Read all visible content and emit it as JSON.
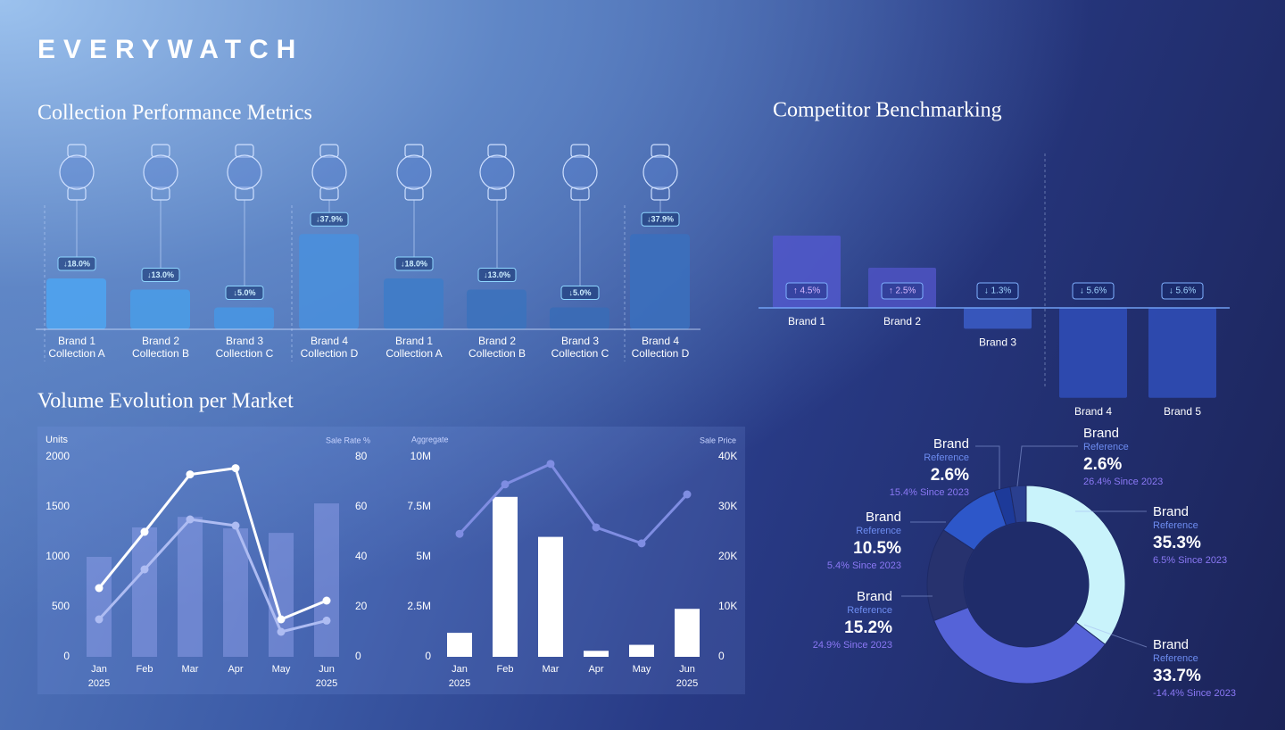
{
  "header": {
    "brand": "EVERYWATCH"
  },
  "chart_data": [
    {
      "type": "bar",
      "title": "Collection Performance Metrics",
      "categories": [
        "Brand 1",
        "Brand 2",
        "Brand 3",
        "Brand 4",
        "Brand 1",
        "Brand 2",
        "Brand 3",
        "Brand 4"
      ],
      "subcategories": [
        "Collection A",
        "Collection B",
        "Collection C",
        "Collection D",
        "Collection A",
        "Collection B",
        "Collection C",
        "Collection D"
      ],
      "values": [
        18,
        13,
        5,
        37.9,
        18,
        13,
        5,
        37.9
      ],
      "value_labels": [
        "↓18.0%",
        "↓13.0%",
        "↓5.0%",
        "↓37.9%",
        "↓18.0%",
        "↓13.0%",
        "↓5.0%",
        "↓37.9%"
      ],
      "colors": [
        "#4fa3ee",
        "#4a9be6",
        "#4895e2",
        "#4a8fdc",
        "#3f7cc8",
        "#3c72bd",
        "#3a6bb6",
        "#3b6fbc"
      ]
    },
    {
      "type": "bar",
      "title": "Competitor Benchmarking",
      "categories": [
        "Brand 1",
        "Brand 2",
        "Brand 3",
        "Brand 4",
        "Brand 5"
      ],
      "values": [
        4.5,
        2.5,
        -1.3,
        -5.6,
        -5.6
      ],
      "value_labels": [
        "↑ 4.5%",
        "↑ 2.5%",
        "↓ 1.3%",
        "↓ 5.6%",
        "↓ 5.6%"
      ],
      "colors": [
        "#5058c9",
        "#4c52c0",
        "#3a5ac2",
        "#2f4db5",
        "#2f4db5"
      ]
    },
    {
      "type": "combo",
      "title": "Volume Evolution per Market",
      "categories": [
        "Jan",
        "Feb",
        "Mar",
        "Apr",
        "May",
        "Jun"
      ],
      "sublabels": [
        "2025",
        null,
        null,
        null,
        null,
        "2025"
      ],
      "ylabel": "Units",
      "y2label": "Sale Rate %",
      "ylim": [
        0,
        2000
      ],
      "yticks": [
        0,
        500,
        1000,
        1500,
        2000
      ],
      "y2lim": [
        0,
        80
      ],
      "y2ticks": [
        0,
        20,
        40,
        60,
        80
      ],
      "series": [
        {
          "type": "bar",
          "color": "#909fe9",
          "values": [
            1000,
            1295,
            1400,
            1285,
            1240,
            1535
          ]
        },
        {
          "type": "line",
          "axis": "y2",
          "color": "#ffffff",
          "values": [
            27.5,
            50,
            73,
            75.5,
            15,
            22.5
          ]
        },
        {
          "type": "line",
          "axis": "y2",
          "color": "#aebcf2",
          "values": [
            15,
            35,
            55,
            52.5,
            10,
            14.5
          ]
        }
      ]
    },
    {
      "type": "combo",
      "categories": [
        "Jan",
        "Feb",
        "Mar",
        "Apr",
        "May",
        "Jun"
      ],
      "sublabels": [
        "2025",
        null,
        null,
        null,
        null,
        "2025"
      ],
      "ylabel": "Aggregate",
      "y2label": "Sale Price",
      "ylim": [
        0,
        10000000
      ],
      "yticks": [
        0,
        {
          "value": 2500000,
          "label": "2.5M"
        },
        {
          "value": 5000000,
          "label": "5M"
        },
        {
          "value": 7500000,
          "label": "7.5M"
        },
        {
          "value": 10000000,
          "label": "10M"
        }
      ],
      "y2lim": [
        0,
        40000
      ],
      "y2ticks": [
        0,
        {
          "value": 10000,
          "label": "10K"
        },
        {
          "value": 20000,
          "label": "20K"
        },
        {
          "value": 30000,
          "label": "30K"
        },
        {
          "value": 40000,
          "label": "40K"
        }
      ],
      "series": [
        {
          "type": "bar",
          "color": "#ffffff",
          "values": [
            1200000,
            8000000,
            6000000,
            300000,
            600000,
            2400000
          ]
        },
        {
          "type": "line",
          "axis": "y2",
          "color": "#7f8de2",
          "values": [
            24600,
            34500,
            38600,
            25900,
            22700,
            32500
          ]
        }
      ]
    },
    {
      "type": "donut",
      "categories": [
        "Brand",
        "Brand",
        "Brand",
        "Brand",
        "Brand",
        "Brand"
      ],
      "sublabels": [
        "Reference",
        "Reference",
        "Reference",
        "Reference",
        "Reference",
        "Reference"
      ],
      "values": [
        35.3,
        33.7,
        15.2,
        10.5,
        2.6,
        2.6
      ],
      "value_labels": [
        "35.3%",
        "33.7%",
        "15.2%",
        "10.5%",
        "2.6%",
        "2.6%"
      ],
      "changes": [
        "6.5% Since 2023",
        "-14.4% Since 2023",
        "24.9% Since 2023",
        "5.4% Since 2023",
        "15.4% Since 2023",
        "26.4% Since 2023"
      ],
      "colors": [
        "#c9f3fb",
        "#5563d8",
        "#27326e",
        "#2d57c9",
        "#1d3a99",
        "#2a3f8f"
      ]
    }
  ]
}
